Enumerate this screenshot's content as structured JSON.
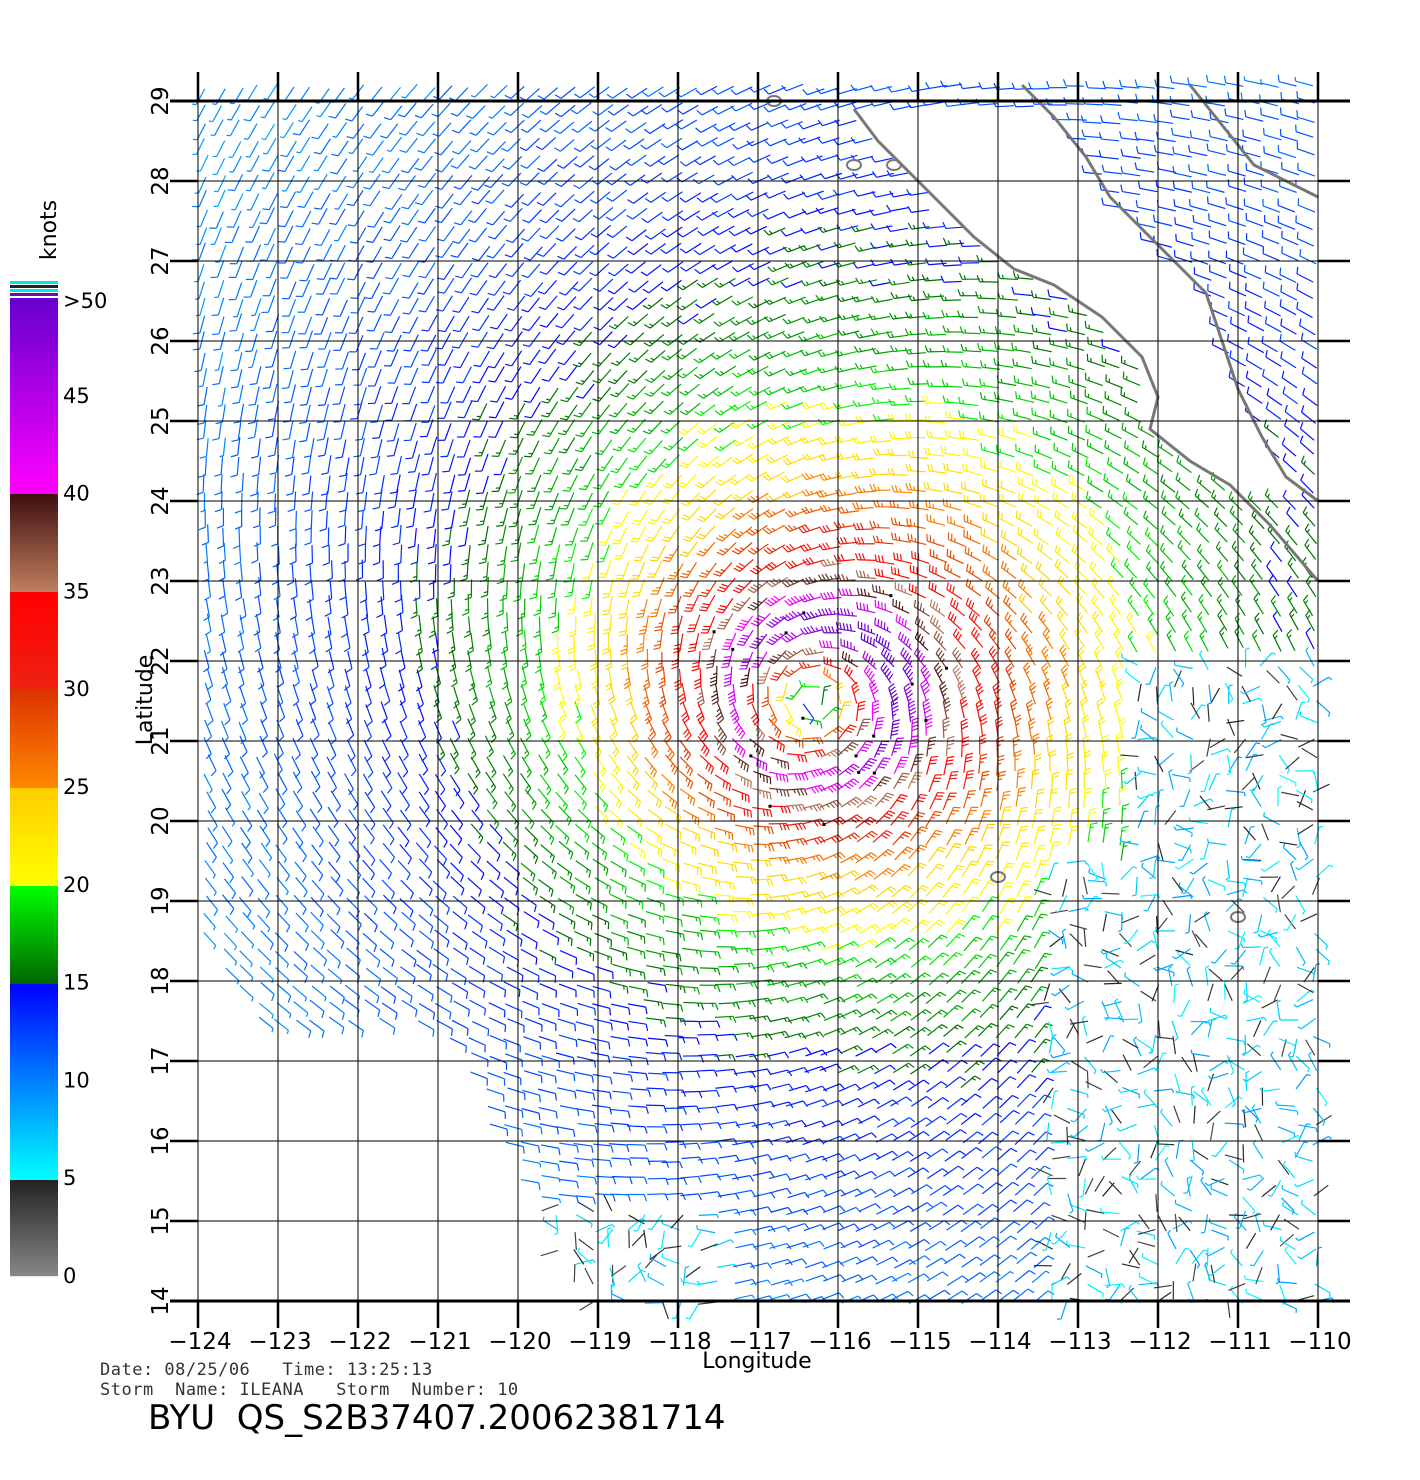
{
  "map": {
    "lon_ticks": [
      "−124",
      "−123",
      "−122",
      "−121",
      "−120",
      "−119",
      "−118",
      "−117",
      "−116",
      "−115",
      "−114",
      "−113",
      "−112",
      "−111",
      "−110"
    ],
    "lat_ticks": [
      "14",
      "15",
      "16",
      "17",
      "18",
      "19",
      "20",
      "21",
      "22",
      "23",
      "24",
      "25",
      "26",
      "27",
      "28",
      "29"
    ],
    "xlabel": "Longitude",
    "ylabel": "Latitude",
    "lon_range": [
      -124,
      -110
    ],
    "lat_range": [
      14,
      29
    ],
    "storm_center": {
      "lon": -116.3,
      "lat": 21.5
    },
    "land_color": "#ffffff",
    "coast_color": "#777777"
  },
  "colorbar": {
    "unit": "knots",
    "labels": [
      ">50",
      "45",
      "40",
      "35",
      "30",
      "25",
      "20",
      "15",
      "10",
      "5",
      "0"
    ],
    "stops": [
      {
        "speed": 0,
        "color": "#888888"
      },
      {
        "speed": 5,
        "color": "#222222"
      },
      {
        "speed": 5,
        "color": "#00ffff"
      },
      {
        "speed": 10,
        "color": "#0080ff"
      },
      {
        "speed": 15,
        "color": "#0000ff"
      },
      {
        "speed": 15,
        "color": "#006600"
      },
      {
        "speed": 20,
        "color": "#00ff00"
      },
      {
        "speed": 20,
        "color": "#ffff00"
      },
      {
        "speed": 25,
        "color": "#ffcc00"
      },
      {
        "speed": 25,
        "color": "#ff8800"
      },
      {
        "speed": 30,
        "color": "#dd3300"
      },
      {
        "speed": 30,
        "color": "#ee2211"
      },
      {
        "speed": 35,
        "color": "#ff0000"
      },
      {
        "speed": 35,
        "color": "#c08060"
      },
      {
        "speed": 40,
        "color": "#401010"
      },
      {
        "speed": 40,
        "color": "#ff00ff"
      },
      {
        "speed": 50,
        "color": "#6600cc"
      }
    ]
  },
  "info": {
    "line1": "Date: 08/25/06   Time: 13:25:13",
    "line2": "Storm  Name: ILEANA   Storm  Number: 10",
    "file": "BYU  QS_S2B37407.20062381714"
  }
}
